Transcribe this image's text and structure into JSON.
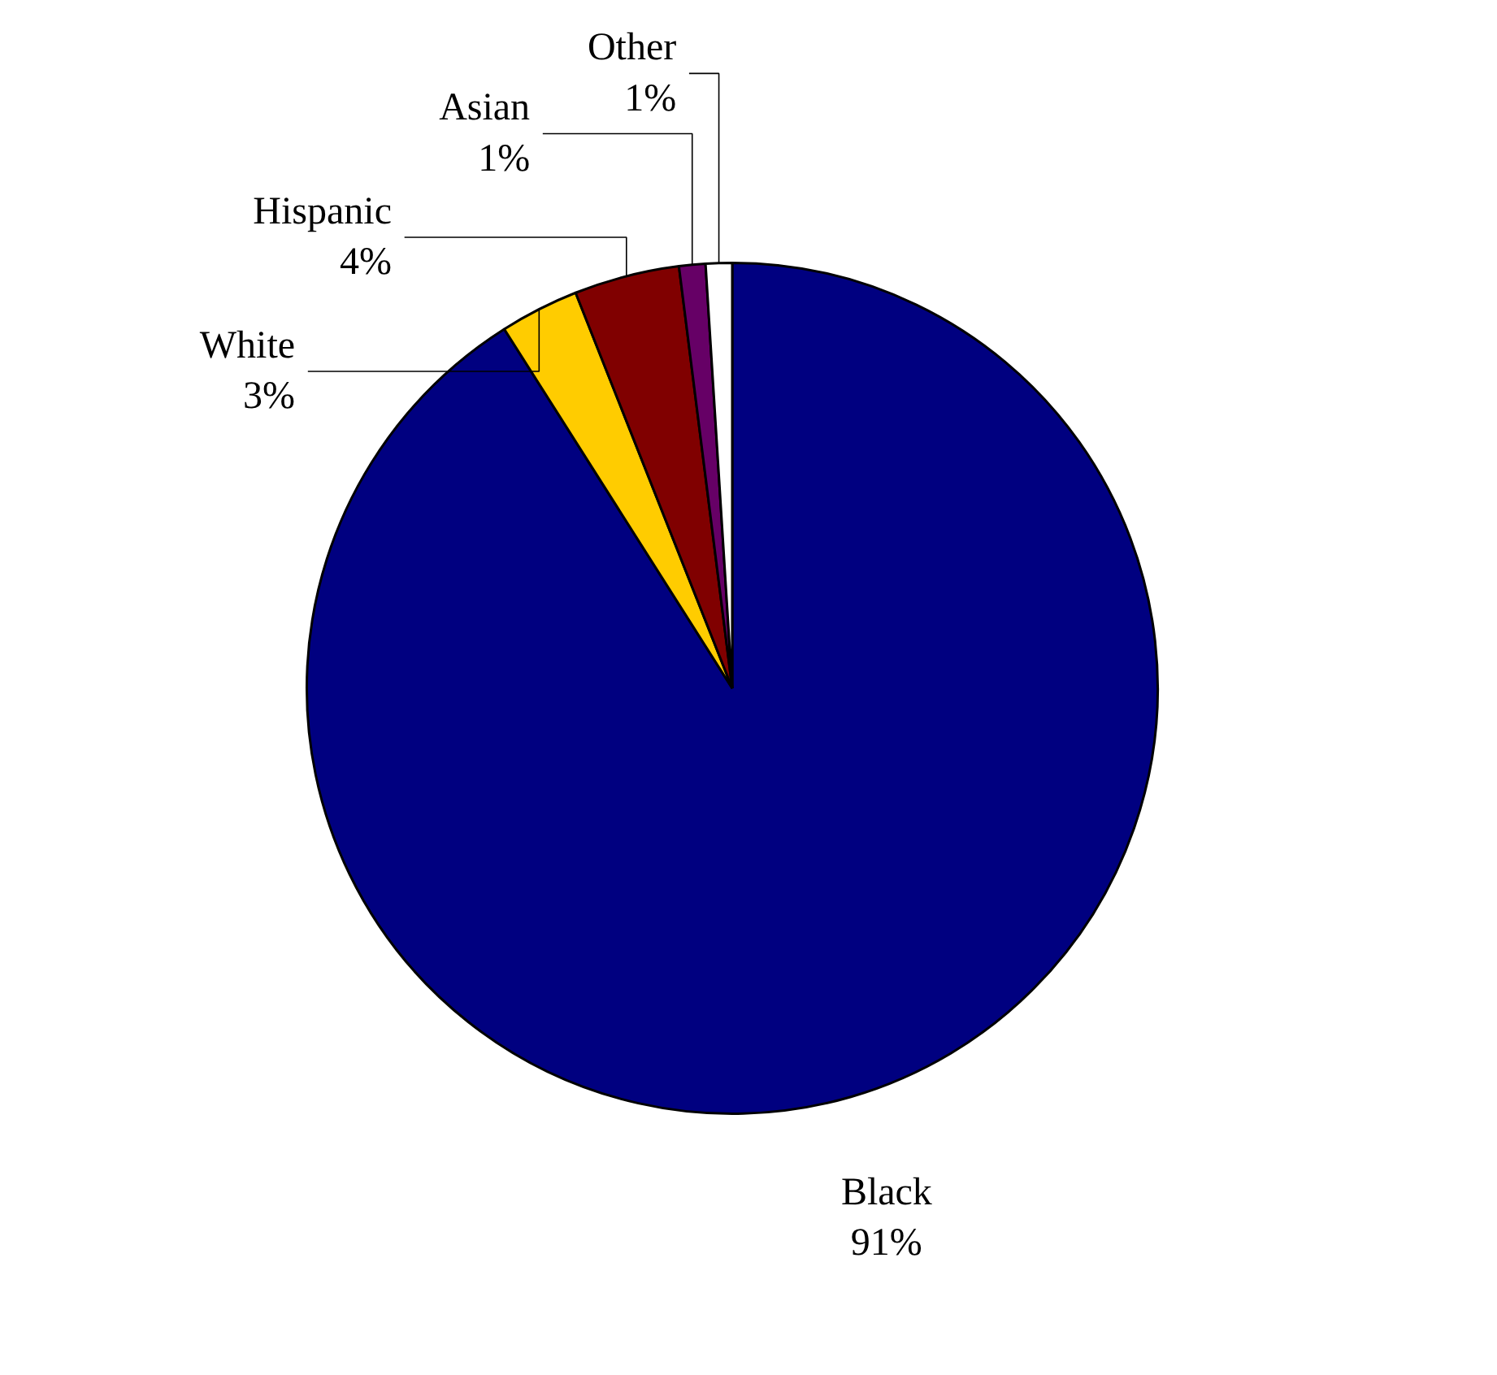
{
  "chart_data": {
    "type": "pie",
    "categories": [
      "Black",
      "White",
      "Hispanic",
      "Asian",
      "Other"
    ],
    "values": [
      91,
      3,
      4,
      1,
      1
    ],
    "colors": [
      "#000080",
      "#ffcc00",
      "#800000",
      "#660066",
      "#ffffff"
    ],
    "value_labels": [
      "91%",
      "3%",
      "4%",
      "1%",
      "1%"
    ]
  }
}
